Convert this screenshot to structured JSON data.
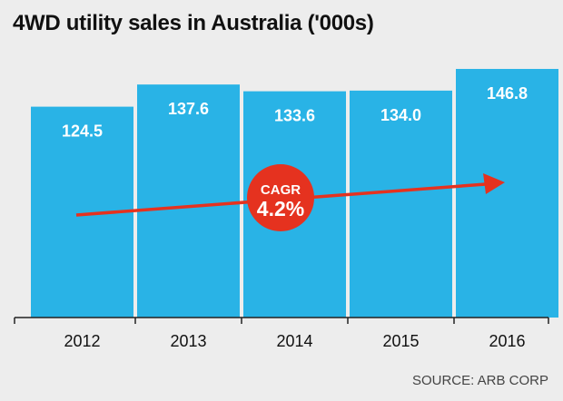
{
  "chart_data": {
    "type": "bar",
    "title": "4WD utility sales in Australia ('000s)",
    "xlabel": "",
    "ylabel": "",
    "categories": [
      "2012",
      "2013",
      "2014",
      "2015",
      "2016"
    ],
    "values": [
      124.5,
      137.6,
      133.6,
      134.0,
      146.8
    ],
    "value_labels": [
      "124.5",
      "137.6",
      "133.6",
      "134.0",
      "146.8"
    ],
    "ylim": [
      0,
      150
    ],
    "grid": false,
    "bar_color": "#29b3e6",
    "annotation": {
      "label": "CAGR",
      "value": "4.2%",
      "circle_color": "#e5321f",
      "arrow_color": "#e5321f"
    },
    "source": "SOURCE: ARB CORP"
  }
}
